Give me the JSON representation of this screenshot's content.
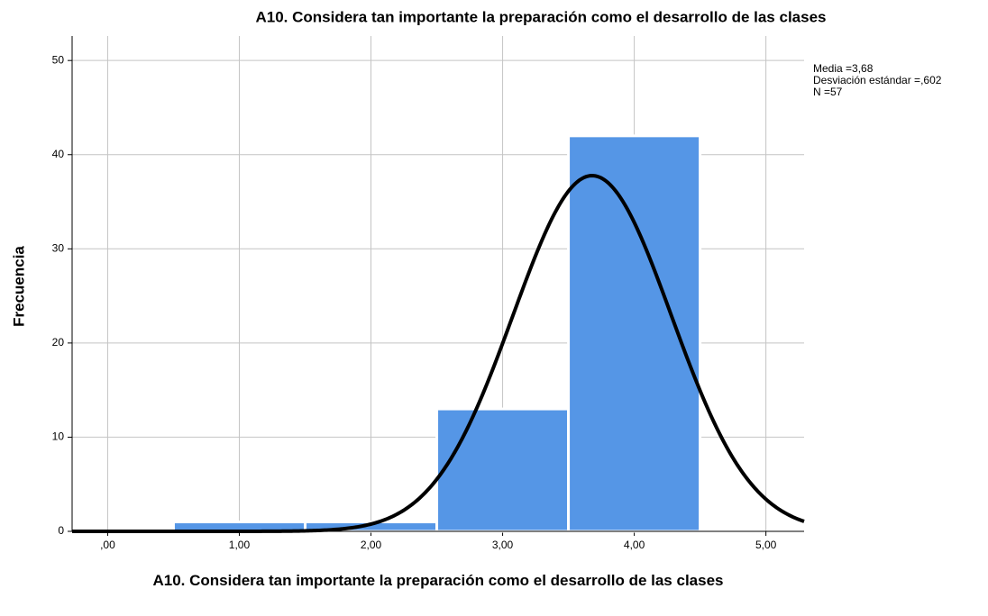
{
  "chart_data": {
    "type": "histogram",
    "title": "A10. Considera tan importante la preparación como el desarrollo de las clases",
    "x_label": "A10. Considera tan importante la preparación como el desarrollo de las clases",
    "y_label": "Frecuencia",
    "bins": [
      0.5,
      1.5,
      2.5,
      3.5,
      4.5
    ],
    "values": [
      1,
      1,
      13,
      42
    ],
    "color": "#5596e6",
    "xlim": [
      -0.27,
      5.29
    ],
    "ylim": [
      0,
      52.6
    ],
    "xticks": [
      {
        "value": 0,
        "label": ",00"
      },
      {
        "value": 1,
        "label": "1,00"
      },
      {
        "value": 2,
        "label": "2,00"
      },
      {
        "value": 3,
        "label": "3,00"
      },
      {
        "value": 4,
        "label": "4,00"
      },
      {
        "value": 5,
        "label": "5,00"
      }
    ],
    "yticks": [
      0,
      10,
      20,
      30,
      40,
      50
    ],
    "grid": true,
    "normal_curve": {
      "mean": 3.68,
      "sd": 0.602,
      "n": 57,
      "color": "#000000"
    },
    "annotations": [
      "Media =3,68",
      "Desviación estándar =,602",
      "N =57"
    ]
  }
}
